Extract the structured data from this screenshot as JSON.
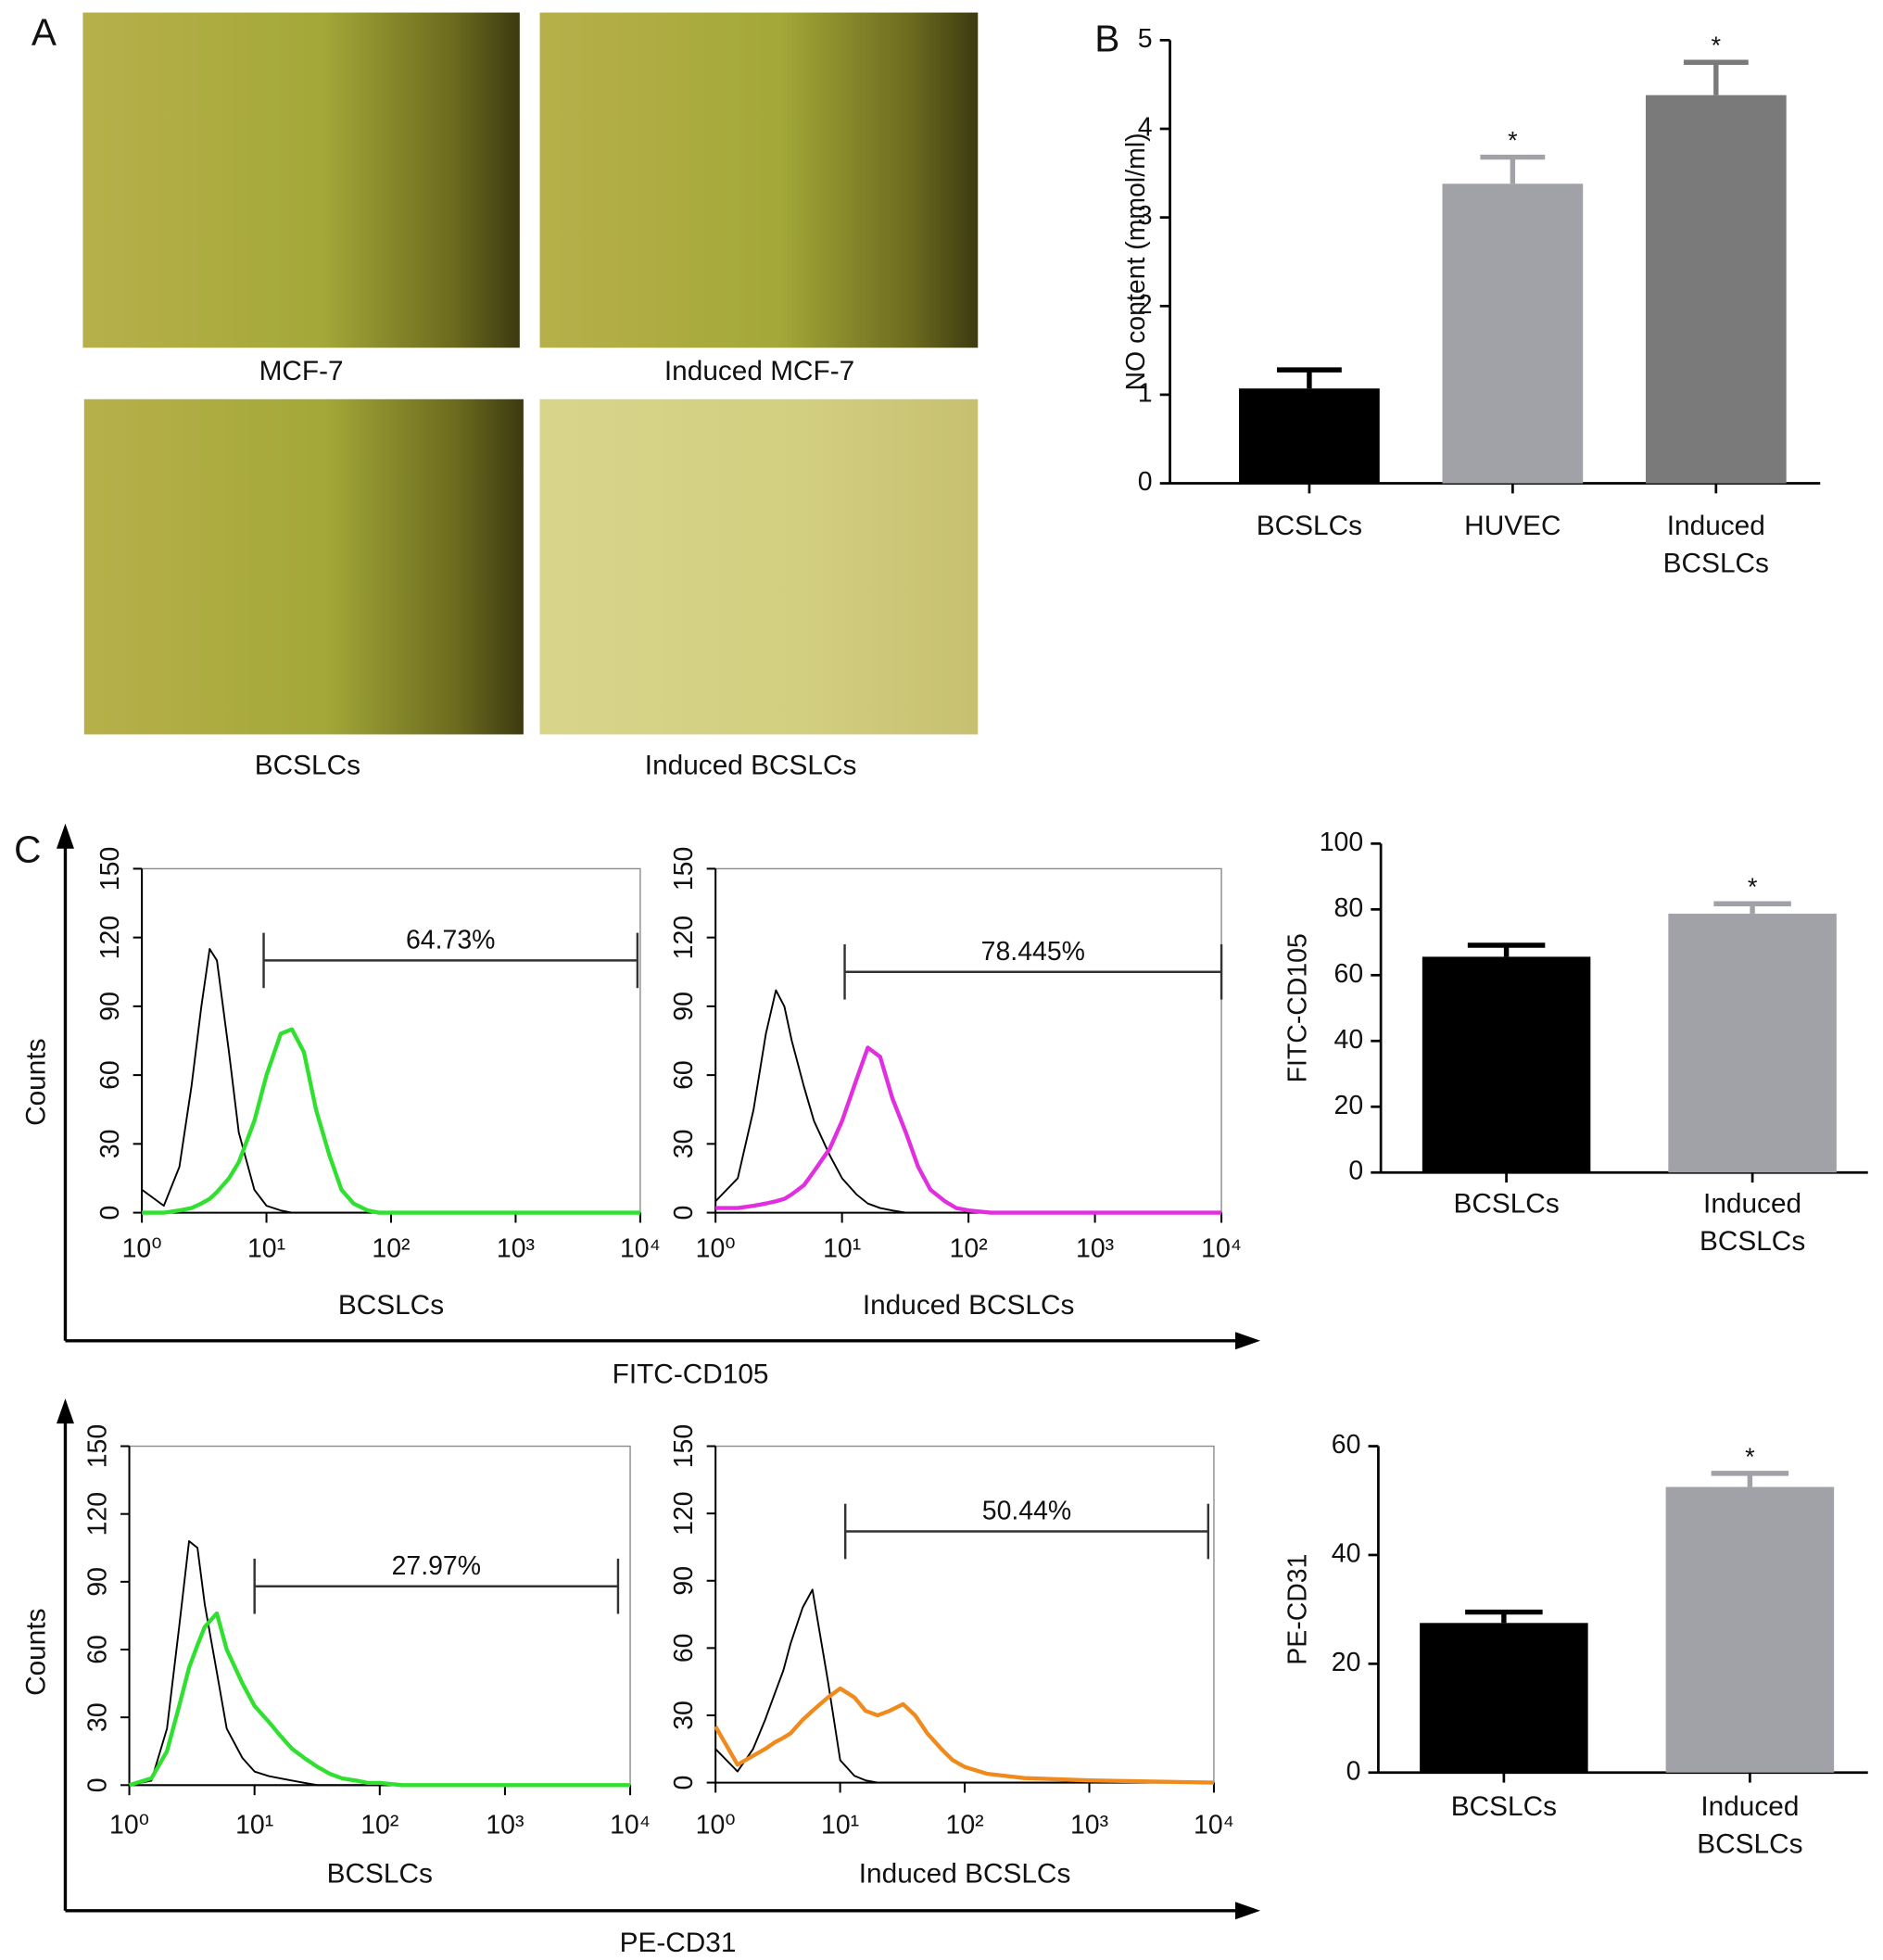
{
  "panel_labels": [
    "A",
    "B",
    "C"
  ],
  "micrographs": [
    {
      "caption": "MCF-7"
    },
    {
      "caption": "Induced MCF-7"
    },
    {
      "caption": "BCSLCs"
    },
    {
      "caption": "Induced BCSLCs"
    }
  ],
  "flow_rows": [
    {
      "xlabel": "FITC-CD105",
      "ylabel": "Counts"
    },
    {
      "xlabel": "PE-CD31",
      "ylabel": "Counts"
    }
  ],
  "chart_data": [
    {
      "type": "bar",
      "ylabel": "NO content (mmol/ml)",
      "categories": [
        "BCSLCs",
        "HUVEC",
        "Induced BCSLCs"
      ],
      "values": [
        1.07,
        3.38,
        4.38
      ],
      "errors": [
        0.21,
        0.3,
        0.37
      ],
      "colors": [
        "#000000",
        "#a1a1a8",
        "#7a7a7a"
      ],
      "annotations": [
        null,
        "*",
        "*"
      ],
      "ylim": [
        0,
        5
      ],
      "yticks": [
        0,
        1,
        2,
        3,
        4,
        5
      ]
    },
    {
      "type": "flow",
      "xlabel": "BCSLCs",
      "xscale": "log",
      "xlim": [
        1,
        10000
      ],
      "xticks": [
        {
          "value": 1,
          "label": "10⁰"
        },
        {
          "value": 10,
          "label": "10¹"
        },
        {
          "value": 100,
          "label": "10²"
        },
        {
          "value": 1000,
          "label": "10³"
        },
        {
          "value": 10000,
          "label": "10⁴"
        }
      ],
      "ylim": [
        0,
        150
      ],
      "yticks": [
        0,
        30,
        60,
        90,
        120,
        150
      ],
      "x": [
        1,
        1.5,
        2,
        2.5,
        3,
        3.5,
        4,
        5,
        6,
        8,
        10,
        13,
        16,
        20,
        25,
        32,
        40,
        50,
        65,
        80,
        100,
        150,
        300,
        1000,
        10000
      ],
      "series": [
        {
          "color": "#000000",
          "values": [
            10,
            3,
            20,
            55,
            90,
            115,
            110,
            70,
            35,
            10,
            3,
            1,
            0,
            0,
            0,
            0,
            0,
            0,
            0,
            0,
            0,
            0,
            0,
            0,
            0
          ]
        },
        {
          "color": "#2fe02f",
          "values": [
            0,
            0,
            1,
            2,
            4,
            6,
            9,
            15,
            22,
            40,
            60,
            78,
            80,
            70,
            45,
            25,
            10,
            4,
            1,
            0,
            0,
            0,
            0,
            0,
            0
          ]
        }
      ],
      "gate": {
        "xlim": [
          9.5,
          9500
        ],
        "y": 110,
        "label": "64.73%"
      }
    },
    {
      "type": "flow",
      "xlabel": "Induced BCSLCs",
      "xscale": "log",
      "xlim": [
        1,
        10000
      ],
      "xticks": [
        {
          "value": 1,
          "label": "10⁰"
        },
        {
          "value": 10,
          "label": "10¹"
        },
        {
          "value": 100,
          "label": "10²"
        },
        {
          "value": 1000,
          "label": "10³"
        },
        {
          "value": 10000,
          "label": "10⁴"
        }
      ],
      "ylim": [
        0,
        150
      ],
      "yticks": [
        0,
        30,
        60,
        90,
        120,
        150
      ],
      "x": [
        1,
        1.5,
        2,
        2.5,
        3,
        3.5,
        4,
        5,
        6,
        8,
        10,
        13,
        16,
        20,
        25,
        32,
        40,
        50,
        65,
        80,
        100,
        150,
        300,
        1000,
        10000
      ],
      "series": [
        {
          "color": "#000000",
          "values": [
            5,
            15,
            45,
            78,
            97,
            90,
            75,
            55,
            40,
            25,
            15,
            8,
            4,
            2,
            1,
            0,
            0,
            0,
            0,
            0,
            0,
            0,
            0,
            0,
            0
          ]
        },
        {
          "color": "#e02ee0",
          "values": [
            2,
            2,
            3,
            4,
            5,
            6,
            8,
            12,
            18,
            28,
            40,
            58,
            72,
            68,
            50,
            35,
            20,
            10,
            5,
            2,
            1,
            0,
            0,
            0,
            0
          ]
        }
      ],
      "gate": {
        "xlim": [
          10.5,
          10000
        ],
        "y": 105,
        "label": "78.445%"
      }
    },
    {
      "type": "bar",
      "ylabel": "FITC-CD105",
      "categories": [
        "BCSLCs",
        "Induced BCSLCs"
      ],
      "values": [
        65.6,
        78.7
      ],
      "errors": [
        3.5,
        3
      ],
      "colors": [
        "#000000",
        "#a1a1a8"
      ],
      "annotations": [
        null,
        "*"
      ],
      "ylim": [
        0,
        100
      ],
      "yticks": [
        0,
        20,
        40,
        60,
        80,
        100
      ]
    },
    {
      "type": "flow",
      "xlabel": "BCSLCs",
      "xscale": "log",
      "xlim": [
        1,
        10000
      ],
      "xticks": [
        {
          "value": 1,
          "label": "10⁰"
        },
        {
          "value": 10,
          "label": "10¹"
        },
        {
          "value": 100,
          "label": "10²"
        },
        {
          "value": 1000,
          "label": "10³"
        },
        {
          "value": 10000,
          "label": "10⁴"
        }
      ],
      "ylim": [
        0,
        150
      ],
      "yticks": [
        0,
        30,
        60,
        90,
        120,
        150
      ],
      "x": [
        1,
        1.5,
        2,
        2.5,
        3,
        3.5,
        4,
        5,
        6,
        8,
        10,
        13,
        16,
        20,
        25,
        32,
        40,
        50,
        65,
        80,
        100,
        150,
        300,
        1000,
        10000
      ],
      "series": [
        {
          "color": "#000000",
          "values": [
            0,
            2,
            25,
            70,
            108,
            105,
            80,
            50,
            25,
            12,
            6,
            4,
            3,
            2,
            1,
            0,
            0,
            0,
            0,
            0,
            0,
            0,
            0,
            0,
            0
          ]
        },
        {
          "color": "#2fe02f",
          "values": [
            0,
            3,
            15,
            35,
            52,
            62,
            70,
            76,
            60,
            45,
            35,
            28,
            22,
            16,
            12,
            8,
            5,
            3,
            2,
            1,
            1,
            0,
            0,
            0,
            0
          ]
        }
      ],
      "gate": {
        "xlim": [
          10,
          8000
        ],
        "y": 88,
        "label": "27.97%"
      }
    },
    {
      "type": "flow",
      "xlabel": "Induced BCSLCs",
      "xscale": "log",
      "xlim": [
        1,
        10000
      ],
      "xticks": [
        {
          "value": 1,
          "label": "10⁰"
        },
        {
          "value": 10,
          "label": "10¹"
        },
        {
          "value": 100,
          "label": "10²"
        },
        {
          "value": 1000,
          "label": "10³"
        },
        {
          "value": 10000,
          "label": "10⁴"
        }
      ],
      "ylim": [
        0,
        150
      ],
      "yticks": [
        0,
        30,
        60,
        90,
        120,
        150
      ],
      "x": [
        1,
        1.5,
        2,
        2.5,
        3,
        3.5,
        4,
        5,
        6,
        8,
        10,
        13,
        16,
        20,
        25,
        32,
        40,
        50,
        65,
        80,
        100,
        150,
        300,
        1000,
        10000
      ],
      "series": [
        {
          "color": "#000000",
          "values": [
            15,
            5,
            15,
            28,
            40,
            50,
            62,
            78,
            86,
            45,
            10,
            3,
            1,
            0,
            0,
            0,
            0,
            0,
            0,
            0,
            0,
            0,
            0,
            0,
            0
          ]
        },
        {
          "color": "#f08a1c",
          "values": [
            25,
            8,
            12,
            15,
            18,
            20,
            22,
            28,
            32,
            38,
            42,
            38,
            32,
            30,
            32,
            35,
            30,
            22,
            15,
            10,
            7,
            4,
            2,
            1,
            0
          ]
        }
      ],
      "gate": {
        "xlim": [
          11,
          9000
        ],
        "y": 112,
        "label": "50.44%"
      }
    },
    {
      "type": "bar",
      "ylabel": "PE-CD31",
      "categories": [
        "BCSLCs",
        "Induced BCSLCs"
      ],
      "values": [
        27.5,
        52.5
      ],
      "errors": [
        2,
        2.5
      ],
      "colors": [
        "#000000",
        "#a1a1a8"
      ],
      "annotations": [
        null,
        "*"
      ],
      "ylim": [
        0,
        60
      ],
      "yticks": [
        0,
        20,
        40,
        60
      ]
    }
  ]
}
